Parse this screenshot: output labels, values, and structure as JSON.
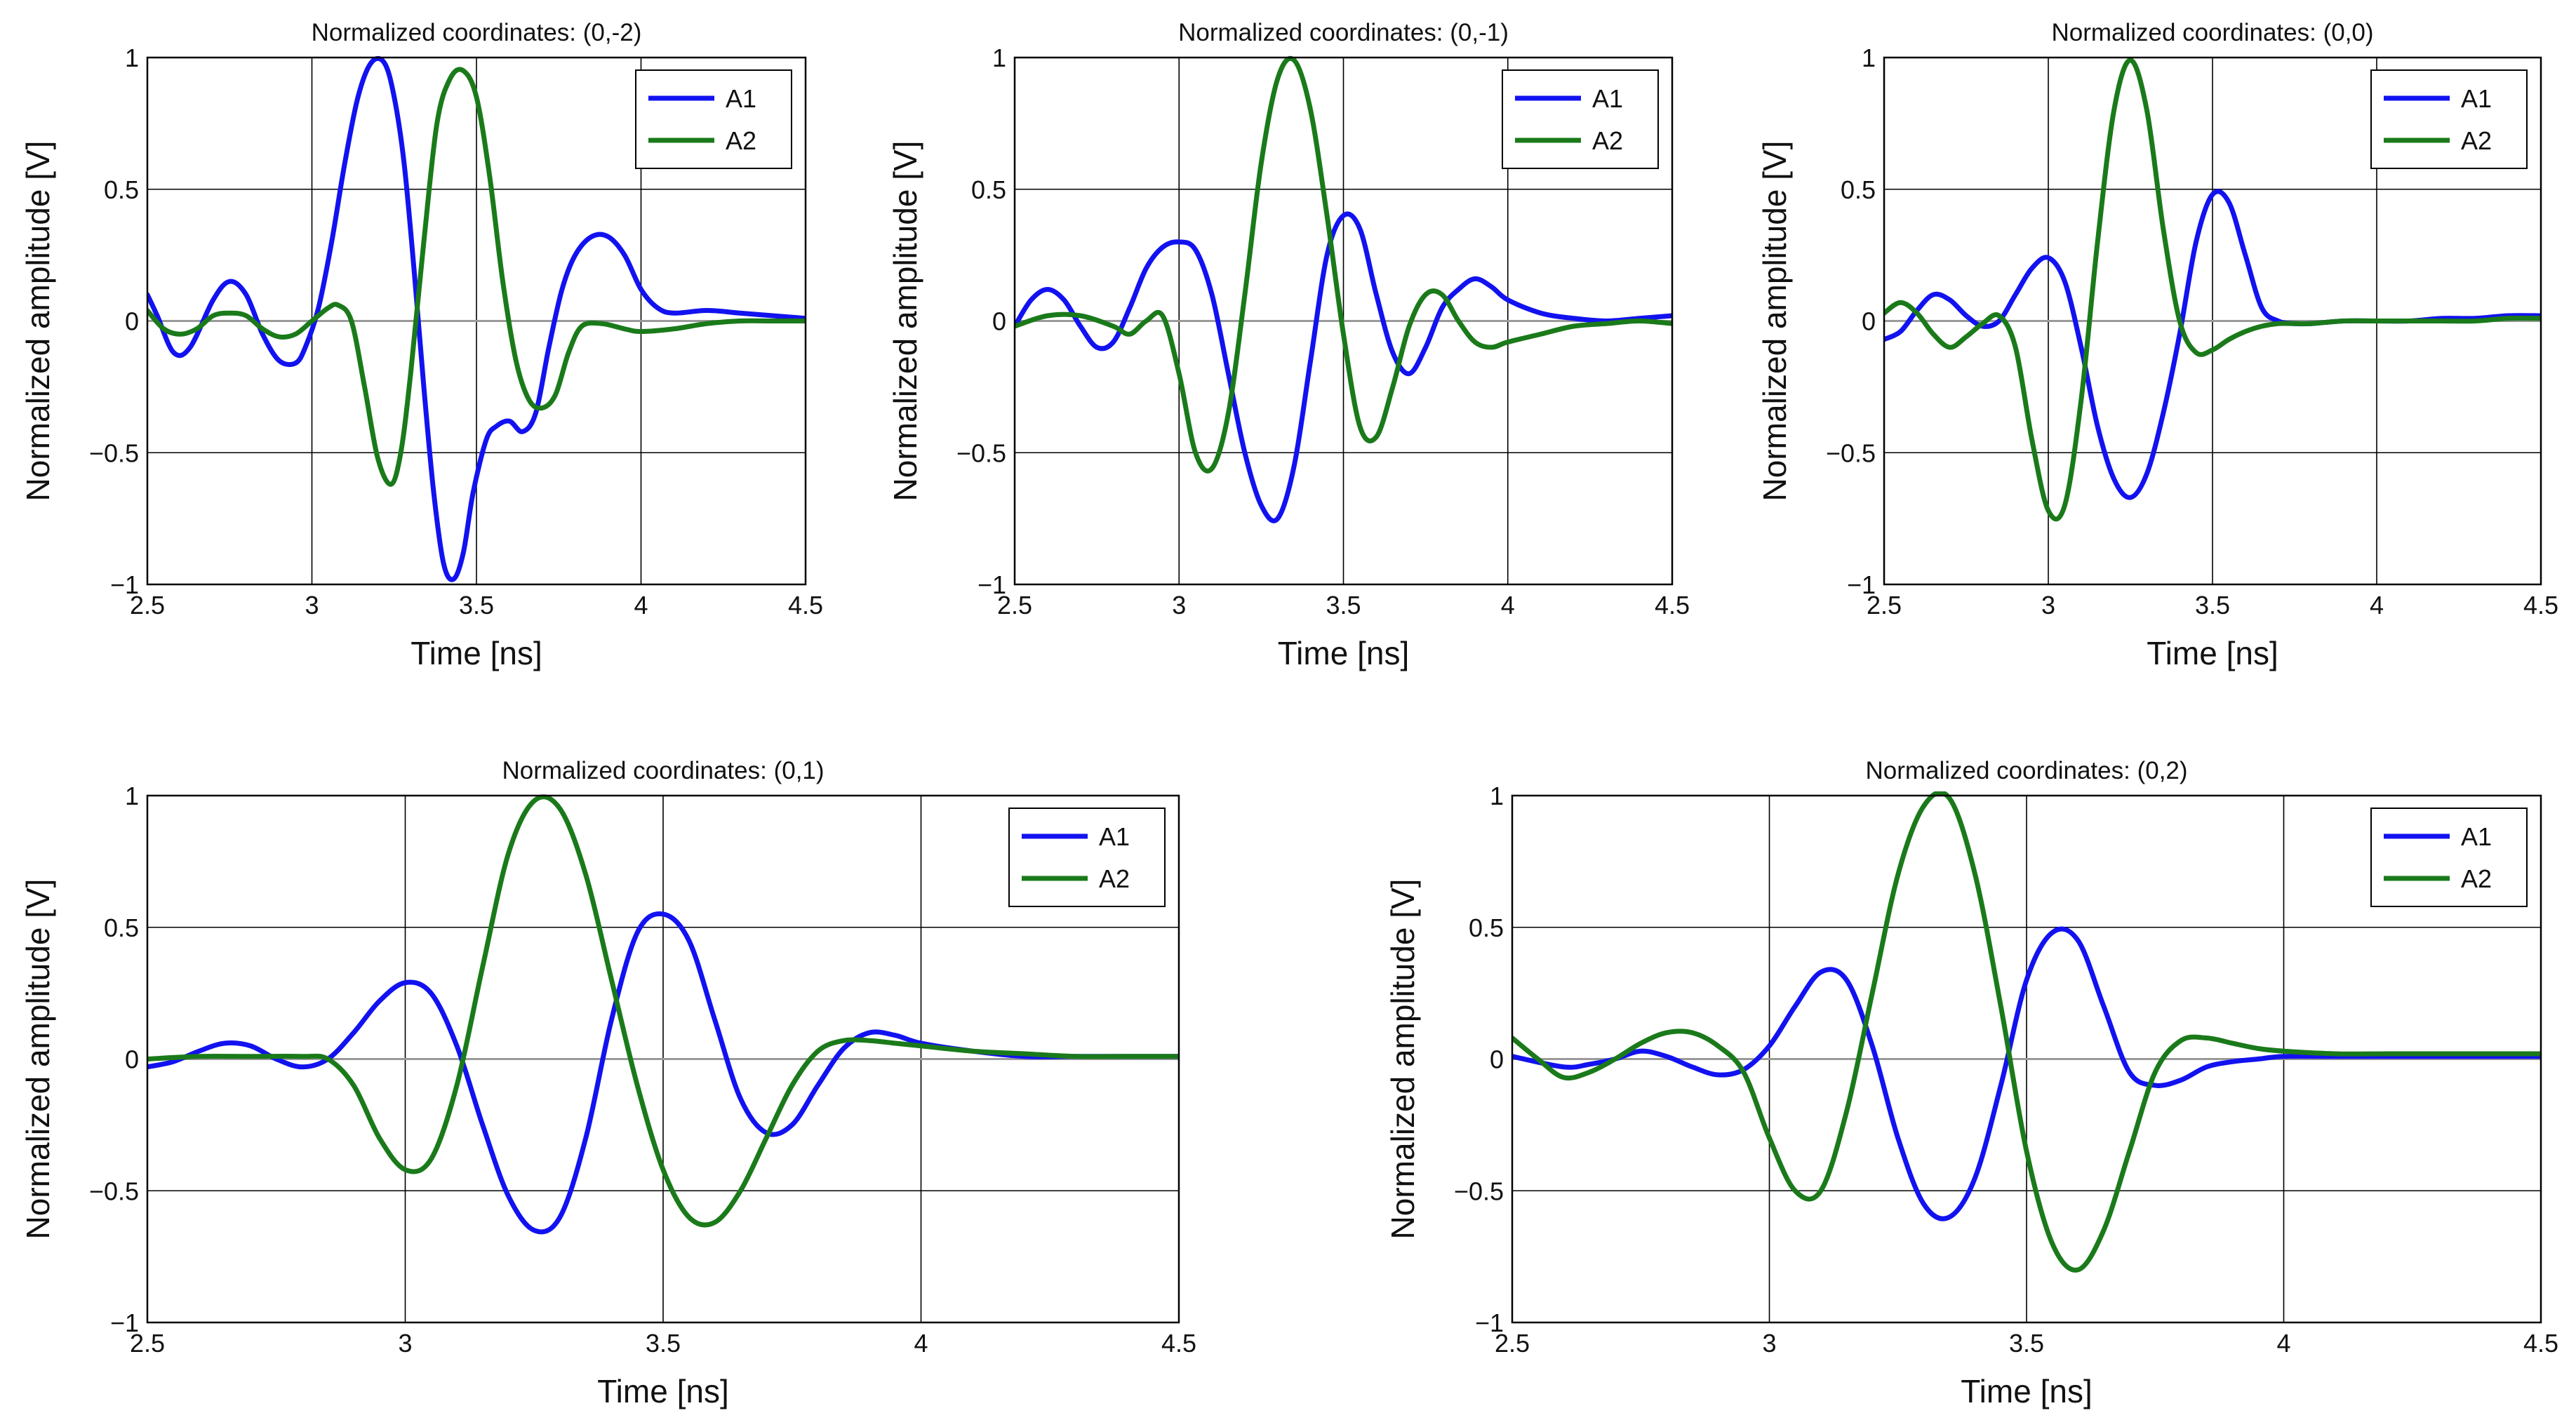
{
  "colors": {
    "A1": "#1212f0",
    "A2": "#1a7a1a",
    "grid": "#000000",
    "frame": "#000000"
  },
  "chart_data": [
    {
      "type": "line",
      "title": "Normalized coordinates: (0,-2)",
      "xlabel": "Time [ns]",
      "ylabel": "Normalized amplitude [V]",
      "xlim": [
        2.5,
        4.5
      ],
      "ylim": [
        -1,
        1
      ],
      "xticks": [
        2.5,
        3,
        3.5,
        4,
        4.5
      ],
      "xtick_labels": [
        "2.5",
        "3",
        "3.5",
        "4",
        "4.5"
      ],
      "yticks": [
        1,
        0.5,
        0,
        -0.5,
        -1
      ],
      "ytick_labels": [
        "1",
        "0.5",
        "0",
        "−0.5",
        "−1"
      ],
      "grid": true,
      "legend": "top-right",
      "series": [
        {
          "name": "A1",
          "x": [
            2.5,
            2.53,
            2.58,
            2.63,
            2.7,
            2.75,
            2.8,
            2.85,
            2.9,
            2.95,
            2.98,
            3.02,
            3.06,
            3.1,
            3.14,
            3.18,
            3.22,
            3.25,
            3.28,
            3.31,
            3.34,
            3.37,
            3.4,
            3.43,
            3.46,
            3.49,
            3.53,
            3.56,
            3.6,
            3.64,
            3.68,
            3.72,
            3.76,
            3.8,
            3.85,
            3.9,
            3.95,
            4.0,
            4.05,
            4.1,
            4.2,
            4.3,
            4.4,
            4.5
          ],
          "y": [
            0.1,
            0.02,
            -0.12,
            -0.1,
            0.08,
            0.15,
            0.1,
            -0.05,
            -0.15,
            -0.16,
            -0.1,
            0.05,
            0.3,
            0.6,
            0.85,
            0.98,
            0.98,
            0.85,
            0.6,
            0.2,
            -0.25,
            -0.65,
            -0.92,
            -0.98,
            -0.88,
            -0.65,
            -0.45,
            -0.4,
            -0.38,
            -0.42,
            -0.35,
            -0.1,
            0.12,
            0.25,
            0.32,
            0.32,
            0.25,
            0.12,
            0.05,
            0.03,
            0.04,
            0.03,
            0.02,
            0.01
          ]
        },
        {
          "name": "A2",
          "x": [
            2.5,
            2.55,
            2.6,
            2.65,
            2.7,
            2.75,
            2.8,
            2.85,
            2.9,
            2.95,
            3.0,
            3.05,
            3.08,
            3.12,
            3.16,
            3.2,
            3.24,
            3.27,
            3.3,
            3.34,
            3.38,
            3.42,
            3.46,
            3.5,
            3.54,
            3.58,
            3.62,
            3.66,
            3.7,
            3.74,
            3.78,
            3.82,
            3.88,
            3.95,
            4.0,
            4.1,
            4.2,
            4.3,
            4.4,
            4.5
          ],
          "y": [
            0.04,
            -0.03,
            -0.05,
            -0.03,
            0.02,
            0.03,
            0.02,
            -0.03,
            -0.06,
            -0.05,
            0.0,
            0.05,
            0.06,
            0.0,
            -0.25,
            -0.52,
            -0.62,
            -0.5,
            -0.2,
            0.3,
            0.75,
            0.92,
            0.95,
            0.85,
            0.55,
            0.15,
            -0.15,
            -0.3,
            -0.33,
            -0.28,
            -0.12,
            -0.02,
            -0.01,
            -0.03,
            -0.04,
            -0.03,
            -0.01,
            0.0,
            0.0,
            0.0
          ]
        }
      ]
    },
    {
      "type": "line",
      "title": "Normalized coordinates: (0,-1)",
      "xlabel": "Time [ns]",
      "ylabel": "Normalized amplitude [V]",
      "xlim": [
        2.5,
        4.5
      ],
      "ylim": [
        -1,
        1
      ],
      "xticks": [
        2.5,
        3,
        3.5,
        4,
        4.5
      ],
      "xtick_labels": [
        "2.5",
        "3",
        "3.5",
        "4",
        "4.5"
      ],
      "yticks": [
        1,
        0.5,
        0,
        -0.5,
        -1
      ],
      "ytick_labels": [
        "1",
        "0.5",
        "0",
        "−0.5",
        "−1"
      ],
      "grid": true,
      "legend": "top-right",
      "series": [
        {
          "name": "A1",
          "x": [
            2.5,
            2.55,
            2.6,
            2.65,
            2.7,
            2.75,
            2.8,
            2.85,
            2.9,
            2.95,
            3.0,
            3.05,
            3.1,
            3.15,
            3.2,
            3.25,
            3.3,
            3.35,
            3.4,
            3.45,
            3.5,
            3.55,
            3.6,
            3.65,
            3.7,
            3.75,
            3.8,
            3.85,
            3.9,
            3.95,
            4.0,
            4.1,
            4.2,
            4.3,
            4.4,
            4.5
          ],
          "y": [
            -0.02,
            0.08,
            0.12,
            0.08,
            -0.02,
            -0.1,
            -0.08,
            0.05,
            0.2,
            0.28,
            0.3,
            0.27,
            0.1,
            -0.2,
            -0.5,
            -0.7,
            -0.75,
            -0.55,
            -0.15,
            0.25,
            0.4,
            0.35,
            0.1,
            -0.12,
            -0.2,
            -0.1,
            0.05,
            0.12,
            0.16,
            0.13,
            0.08,
            0.03,
            0.01,
            0.0,
            0.01,
            0.02
          ]
        },
        {
          "name": "A2",
          "x": [
            2.5,
            2.6,
            2.7,
            2.8,
            2.85,
            2.9,
            2.95,
            3.0,
            3.05,
            3.1,
            3.15,
            3.2,
            3.25,
            3.3,
            3.35,
            3.4,
            3.45,
            3.5,
            3.55,
            3.6,
            3.65,
            3.7,
            3.75,
            3.8,
            3.85,
            3.9,
            3.95,
            4.0,
            4.1,
            4.2,
            4.3,
            4.4,
            4.5
          ],
          "y": [
            -0.02,
            0.02,
            0.02,
            -0.02,
            -0.05,
            0.0,
            0.02,
            -0.2,
            -0.5,
            -0.56,
            -0.35,
            0.1,
            0.6,
            0.92,
            0.99,
            0.8,
            0.4,
            -0.05,
            -0.4,
            -0.44,
            -0.25,
            -0.02,
            0.1,
            0.1,
            0.0,
            -0.08,
            -0.1,
            -0.08,
            -0.05,
            -0.02,
            -0.01,
            0.0,
            -0.01
          ]
        }
      ]
    },
    {
      "type": "line",
      "title": "Normalized coordinates: (0,0)",
      "xlabel": "Time [ns]",
      "ylabel": "Normalized amplitude [V]",
      "xlim": [
        2.5,
        4.5
      ],
      "ylim": [
        -1,
        1
      ],
      "xticks": [
        2.5,
        3,
        3.5,
        4,
        4.5
      ],
      "xtick_labels": [
        "2.5",
        "3",
        "3.5",
        "4",
        "4.5"
      ],
      "yticks": [
        1,
        0.5,
        0,
        -0.5,
        -1
      ],
      "ytick_labels": [
        "1",
        "0.5",
        "0",
        "−0.5",
        "−1"
      ],
      "grid": true,
      "legend": "top-right",
      "series": [
        {
          "name": "A1",
          "x": [
            2.5,
            2.55,
            2.6,
            2.65,
            2.7,
            2.75,
            2.8,
            2.85,
            2.9,
            2.95,
            3.0,
            3.05,
            3.1,
            3.15,
            3.2,
            3.25,
            3.3,
            3.35,
            3.4,
            3.45,
            3.5,
            3.55,
            3.6,
            3.65,
            3.7,
            3.75,
            3.8,
            3.9,
            4.0,
            4.1,
            4.2,
            4.3,
            4.4,
            4.5
          ],
          "y": [
            -0.07,
            -0.04,
            0.04,
            0.1,
            0.08,
            0.02,
            -0.02,
            0.0,
            0.1,
            0.2,
            0.24,
            0.15,
            -0.1,
            -0.4,
            -0.6,
            -0.67,
            -0.58,
            -0.35,
            -0.05,
            0.3,
            0.48,
            0.45,
            0.25,
            0.05,
            0.0,
            -0.01,
            -0.01,
            0.0,
            0.0,
            0.0,
            0.01,
            0.01,
            0.02,
            0.02
          ]
        },
        {
          "name": "A2",
          "x": [
            2.5,
            2.55,
            2.6,
            2.65,
            2.7,
            2.75,
            2.8,
            2.85,
            2.9,
            2.95,
            3.0,
            3.05,
            3.1,
            3.15,
            3.2,
            3.25,
            3.3,
            3.35,
            3.4,
            3.45,
            3.5,
            3.55,
            3.6,
            3.65,
            3.7,
            3.75,
            3.8,
            3.9,
            4.0,
            4.1,
            4.2,
            4.3,
            4.4,
            4.5
          ],
          "y": [
            0.03,
            0.07,
            0.03,
            -0.05,
            -0.1,
            -0.06,
            -0.01,
            0.02,
            -0.1,
            -0.45,
            -0.72,
            -0.7,
            -0.3,
            0.3,
            0.8,
            0.99,
            0.8,
            0.35,
            0.0,
            -0.12,
            -0.11,
            -0.07,
            -0.04,
            -0.02,
            -0.01,
            -0.01,
            -0.01,
            0.0,
            0.0,
            0.0,
            0.0,
            0.0,
            0.01,
            0.01
          ]
        }
      ]
    },
    {
      "type": "line",
      "title": "Normalized coordinates: (0,1)",
      "xlabel": "Time [ns]",
      "ylabel": "Normalized amplitude [V]",
      "xlim": [
        2.5,
        4.5
      ],
      "ylim": [
        -1,
        1
      ],
      "xticks": [
        2.5,
        3,
        3.5,
        4,
        4.5
      ],
      "xtick_labels": [
        "2.5",
        "3",
        "3.5",
        "4",
        "4.5"
      ],
      "yticks": [
        1,
        0.5,
        0,
        -0.5,
        -1
      ],
      "ytick_labels": [
        "1",
        "0.5",
        "0",
        "−0.5",
        "−1"
      ],
      "grid": true,
      "legend": "top-right",
      "series": [
        {
          "name": "A1",
          "x": [
            2.5,
            2.55,
            2.6,
            2.65,
            2.7,
            2.75,
            2.8,
            2.85,
            2.9,
            2.95,
            3.0,
            3.05,
            3.1,
            3.15,
            3.2,
            3.25,
            3.3,
            3.35,
            3.4,
            3.45,
            3.5,
            3.55,
            3.6,
            3.65,
            3.7,
            3.75,
            3.8,
            3.85,
            3.9,
            3.95,
            4.0,
            4.1,
            4.2,
            4.3,
            4.4,
            4.5
          ],
          "y": [
            -0.03,
            -0.01,
            0.03,
            0.06,
            0.05,
            0.0,
            -0.03,
            0.0,
            0.1,
            0.22,
            0.29,
            0.25,
            0.05,
            -0.25,
            -0.52,
            -0.65,
            -0.6,
            -0.3,
            0.15,
            0.48,
            0.55,
            0.45,
            0.15,
            -0.15,
            -0.28,
            -0.25,
            -0.1,
            0.04,
            0.1,
            0.09,
            0.06,
            0.03,
            0.01,
            0.01,
            0.01,
            0.01
          ]
        },
        {
          "name": "A2",
          "x": [
            2.5,
            2.6,
            2.7,
            2.8,
            2.85,
            2.9,
            2.95,
            3.0,
            3.05,
            3.1,
            3.15,
            3.2,
            3.25,
            3.3,
            3.35,
            3.4,
            3.45,
            3.5,
            3.55,
            3.6,
            3.65,
            3.7,
            3.75,
            3.8,
            3.85,
            3.9,
            3.95,
            4.0,
            4.1,
            4.2,
            4.3,
            4.4,
            4.5
          ],
          "y": [
            0.0,
            0.01,
            0.01,
            0.01,
            0.0,
            -0.1,
            -0.3,
            -0.42,
            -0.38,
            -0.1,
            0.35,
            0.78,
            0.98,
            0.95,
            0.7,
            0.3,
            -0.1,
            -0.42,
            -0.6,
            -0.62,
            -0.5,
            -0.3,
            -0.1,
            0.03,
            0.07,
            0.07,
            0.06,
            0.05,
            0.03,
            0.02,
            0.01,
            0.01,
            0.01
          ]
        }
      ]
    },
    {
      "type": "line",
      "title": "Normalized coordinates: (0,2)",
      "xlabel": "Time [ns]",
      "ylabel": "Normalized amplitude [V]",
      "xlim": [
        2.5,
        4.5
      ],
      "ylim": [
        -1,
        1
      ],
      "xticks": [
        2.5,
        3,
        3.5,
        4,
        4.5
      ],
      "xtick_labels": [
        "2.5",
        "3",
        "3.5",
        "4",
        "4.5"
      ],
      "yticks": [
        1,
        0.5,
        0,
        -0.5,
        -1
      ],
      "ytick_labels": [
        "1",
        "0.5",
        "0",
        "−0.5",
        "−1"
      ],
      "grid": true,
      "legend": "top-right",
      "series": [
        {
          "name": "A1",
          "x": [
            2.5,
            2.6,
            2.65,
            2.7,
            2.75,
            2.8,
            2.85,
            2.9,
            2.95,
            3.0,
            3.05,
            3.1,
            3.15,
            3.2,
            3.25,
            3.3,
            3.35,
            3.4,
            3.45,
            3.5,
            3.55,
            3.6,
            3.65,
            3.7,
            3.75,
            3.8,
            3.85,
            3.9,
            3.95,
            4.0,
            4.1,
            4.2,
            4.3,
            4.4,
            4.5
          ],
          "y": [
            0.01,
            -0.03,
            -0.02,
            0.0,
            0.03,
            0.01,
            -0.03,
            -0.06,
            -0.04,
            0.05,
            0.2,
            0.33,
            0.3,
            0.05,
            -0.3,
            -0.55,
            -0.6,
            -0.45,
            -0.1,
            0.3,
            0.48,
            0.45,
            0.2,
            -0.05,
            -0.1,
            -0.08,
            -0.03,
            -0.01,
            0.0,
            0.01,
            0.01,
            0.01,
            0.01,
            0.01,
            0.01
          ]
        },
        {
          "name": "A2",
          "x": [
            2.5,
            2.55,
            2.6,
            2.65,
            2.7,
            2.75,
            2.8,
            2.85,
            2.9,
            2.95,
            3.0,
            3.05,
            3.1,
            3.15,
            3.2,
            3.25,
            3.3,
            3.35,
            3.4,
            3.45,
            3.5,
            3.55,
            3.6,
            3.65,
            3.7,
            3.75,
            3.8,
            3.85,
            3.9,
            3.95,
            4.0,
            4.1,
            4.2,
            4.3,
            4.4,
            4.5
          ],
          "y": [
            0.08,
            0.0,
            -0.07,
            -0.05,
            0.0,
            0.06,
            0.1,
            0.1,
            0.05,
            -0.05,
            -0.3,
            -0.5,
            -0.5,
            -0.2,
            0.25,
            0.7,
            0.96,
            0.99,
            0.7,
            0.2,
            -0.35,
            -0.7,
            -0.8,
            -0.65,
            -0.35,
            -0.05,
            0.07,
            0.08,
            0.06,
            0.04,
            0.03,
            0.02,
            0.02,
            0.02,
            0.02,
            0.02
          ]
        }
      ]
    }
  ]
}
